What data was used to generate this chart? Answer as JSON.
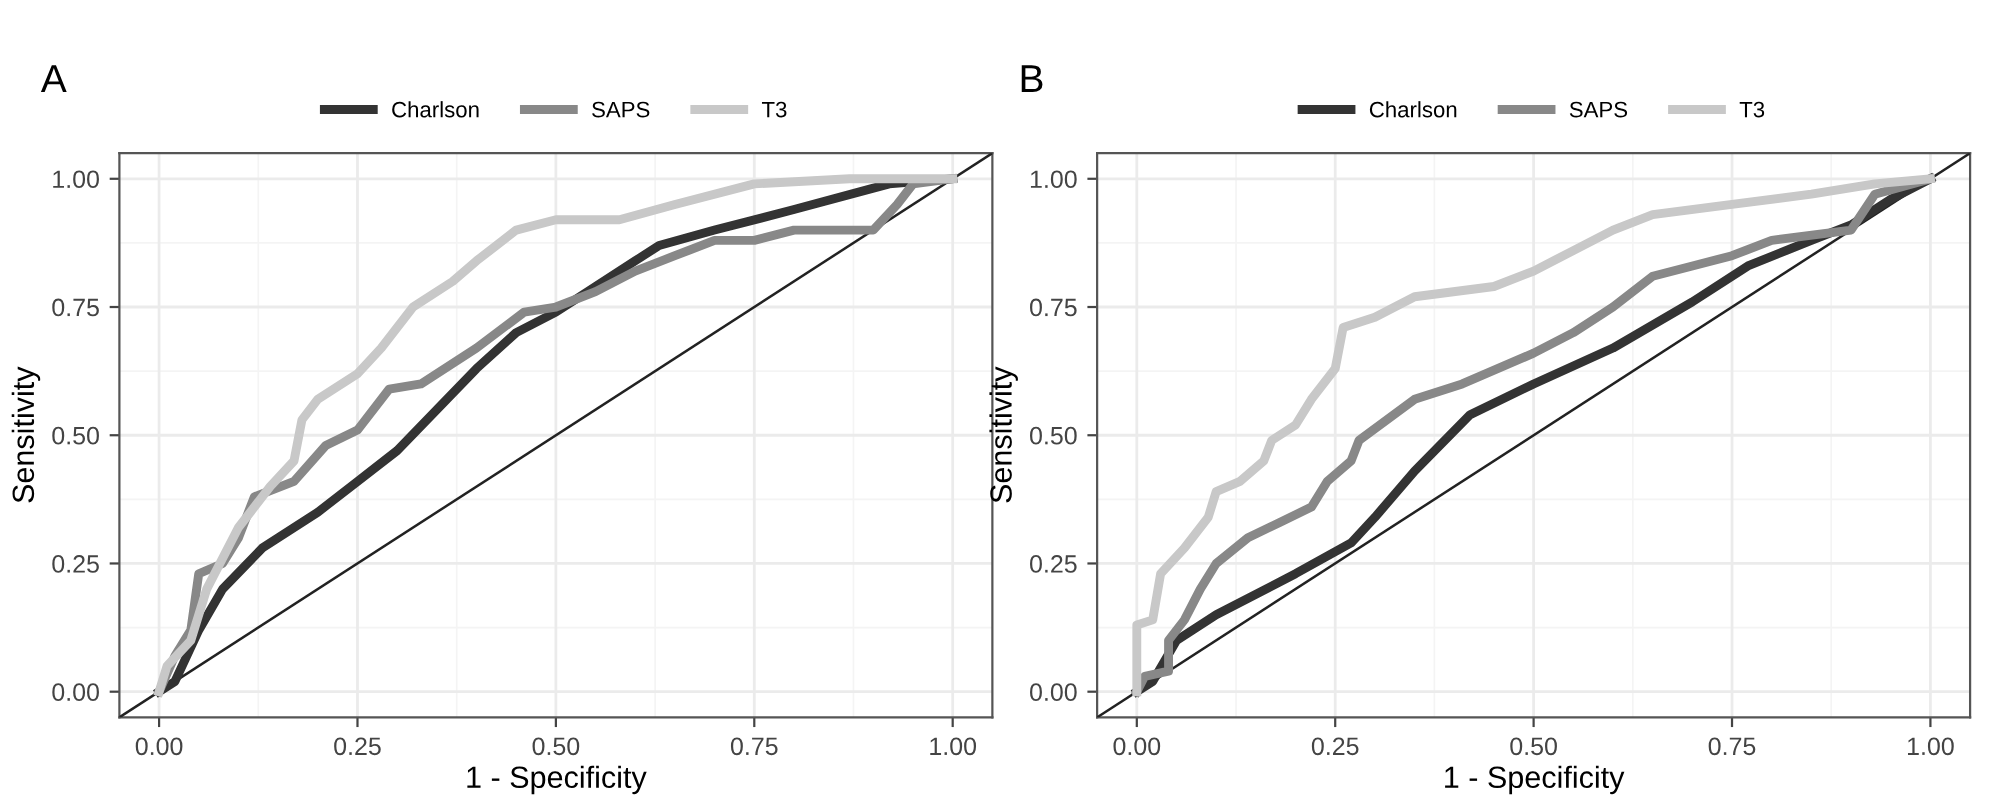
{
  "chart_data": [
    {
      "type": "line",
      "title": "A",
      "xlabel": "1 - Specificity",
      "ylabel": "Sensitivity",
      "xlim": [
        -0.05,
        1.05
      ],
      "ylim": [
        -0.05,
        1.05
      ],
      "xticks": [
        {
          "value": 0,
          "label": "0.00"
        },
        {
          "value": 0.25,
          "label": "0.25"
        },
        {
          "value": 0.5,
          "label": "0.50"
        },
        {
          "value": 0.75,
          "label": "0.75"
        },
        {
          "value": 1,
          "label": "1.00"
        }
      ],
      "yticks": [
        {
          "value": 0,
          "label": "0.00"
        },
        {
          "value": 0.25,
          "label": "0.25"
        },
        {
          "value": 0.5,
          "label": "0.50"
        },
        {
          "value": 0.75,
          "label": "0.75"
        },
        {
          "value": 1,
          "label": "1.00"
        }
      ],
      "grid": true,
      "legend": "top",
      "series": [
        {
          "x": [
            -0.05,
            1.05
          ],
          "values": [
            -0.05,
            1.05
          ],
          "color": "#222222"
        },
        {
          "name": "Charlson",
          "color": "#333333",
          "x": [
            0,
            0.02,
            0.05,
            0.08,
            0.13,
            0.2,
            0.25,
            0.3,
            0.35,
            0.4,
            0.45,
            0.5,
            0.55,
            0.6,
            0.63,
            0.7,
            0.8,
            0.92,
            1
          ],
          "values": [
            0,
            0.02,
            0.12,
            0.2,
            0.28,
            0.35,
            0.41,
            0.47,
            0.55,
            0.63,
            0.7,
            0.74,
            0.79,
            0.84,
            0.87,
            0.9,
            0.94,
            0.99,
            1
          ]
        },
        {
          "name": "SAPS",
          "color": "#888888",
          "x": [
            0,
            0.02,
            0.04,
            0.05,
            0.08,
            0.1,
            0.12,
            0.17,
            0.21,
            0.25,
            0.29,
            0.33,
            0.4,
            0.46,
            0.5,
            0.55,
            0.6,
            0.65,
            0.7,
            0.75,
            0.8,
            0.9,
            0.93,
            0.95,
            1
          ],
          "values": [
            0,
            0.07,
            0.12,
            0.23,
            0.25,
            0.3,
            0.38,
            0.41,
            0.48,
            0.51,
            0.59,
            0.6,
            0.67,
            0.74,
            0.75,
            0.78,
            0.82,
            0.85,
            0.88,
            0.88,
            0.9,
            0.9,
            0.95,
            0.99,
            1
          ]
        },
        {
          "name": "T3",
          "color": "#c8c8c8",
          "x": [
            0,
            0.01,
            0.04,
            0.06,
            0.1,
            0.14,
            0.17,
            0.18,
            0.2,
            0.25,
            0.28,
            0.32,
            0.37,
            0.4,
            0.45,
            0.5,
            0.58,
            0.65,
            0.75,
            0.87,
            1
          ],
          "values": [
            0,
            0.05,
            0.1,
            0.2,
            0.32,
            0.4,
            0.45,
            0.53,
            0.57,
            0.62,
            0.67,
            0.75,
            0.8,
            0.84,
            0.9,
            0.92,
            0.92,
            0.95,
            0.99,
            1,
            1
          ]
        }
      ]
    },
    {
      "type": "line",
      "title": "B",
      "xlabel": "1 - Specificity",
      "ylabel": "Sensitivity",
      "xlim": [
        -0.05,
        1.05
      ],
      "ylim": [
        -0.05,
        1.05
      ],
      "xticks": [
        {
          "value": 0,
          "label": "0.00"
        },
        {
          "value": 0.25,
          "label": "0.25"
        },
        {
          "value": 0.5,
          "label": "0.50"
        },
        {
          "value": 0.75,
          "label": "0.75"
        },
        {
          "value": 1,
          "label": "1.00"
        }
      ],
      "yticks": [
        {
          "value": 0,
          "label": "0.00"
        },
        {
          "value": 0.25,
          "label": "0.25"
        },
        {
          "value": 0.5,
          "label": "0.50"
        },
        {
          "value": 0.75,
          "label": "0.75"
        },
        {
          "value": 1,
          "label": "1.00"
        }
      ],
      "grid": true,
      "legend": "top",
      "series": [
        {
          "x": [
            -0.05,
            1.05
          ],
          "values": [
            -0.05,
            1.05
          ],
          "color": "#222222"
        },
        {
          "name": "Charlson",
          "color": "#333333",
          "x": [
            0,
            0.02,
            0.05,
            0.1,
            0.2,
            0.27,
            0.3,
            0.35,
            0.42,
            0.5,
            0.6,
            0.7,
            0.77,
            0.85,
            0.9,
            0.95,
            1
          ],
          "values": [
            0,
            0.02,
            0.1,
            0.15,
            0.23,
            0.29,
            0.34,
            0.43,
            0.54,
            0.6,
            0.67,
            0.76,
            0.83,
            0.88,
            0.91,
            0.96,
            1
          ]
        },
        {
          "name": "SAPS",
          "color": "#888888",
          "x": [
            0,
            0.01,
            0.04,
            0.04,
            0.06,
            0.08,
            0.1,
            0.14,
            0.18,
            0.22,
            0.24,
            0.27,
            0.28,
            0.35,
            0.41,
            0.5,
            0.55,
            0.6,
            0.65,
            0.7,
            0.75,
            0.8,
            0.9,
            0.93,
            1
          ],
          "values": [
            0,
            0.03,
            0.04,
            0.1,
            0.14,
            0.2,
            0.25,
            0.3,
            0.33,
            0.36,
            0.41,
            0.45,
            0.49,
            0.57,
            0.6,
            0.66,
            0.7,
            0.75,
            0.81,
            0.83,
            0.85,
            0.88,
            0.9,
            0.97,
            1
          ]
        },
        {
          "name": "T3",
          "color": "#c8c8c8",
          "x": [
            0,
            0,
            0.02,
            0.03,
            0.06,
            0.09,
            0.1,
            0.13,
            0.16,
            0.17,
            0.2,
            0.22,
            0.25,
            0.26,
            0.3,
            0.35,
            0.45,
            0.5,
            0.55,
            0.6,
            0.65,
            0.75,
            0.85,
            0.93,
            1
          ],
          "values": [
            0,
            0.13,
            0.14,
            0.23,
            0.28,
            0.34,
            0.39,
            0.41,
            0.45,
            0.49,
            0.52,
            0.57,
            0.63,
            0.71,
            0.73,
            0.77,
            0.79,
            0.82,
            0.86,
            0.9,
            0.93,
            0.95,
            0.97,
            0.99,
            1
          ]
        }
      ]
    }
  ]
}
